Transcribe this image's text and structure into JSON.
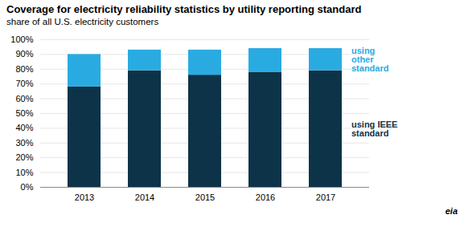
{
  "chart_data": {
    "type": "bar",
    "stacked": true,
    "title": "Coverage for electricity reliability statistics by utility reporting standard",
    "subtitle": "share of all U.S. electricity customers",
    "categories": [
      "2013",
      "2014",
      "2015",
      "2016",
      "2017"
    ],
    "series": [
      {
        "name": "using IEEE\nstandard",
        "color": "#0d3349",
        "values": [
          68,
          79,
          76,
          78,
          79
        ]
      },
      {
        "name": "using\nother\nstandard",
        "color": "#29abe2",
        "values": [
          22,
          14,
          17,
          16,
          15
        ]
      }
    ],
    "ylim": [
      0,
      100
    ],
    "yticks": [
      {
        "value": 0,
        "label": "0%"
      },
      {
        "value": 10,
        "label": "10%"
      },
      {
        "value": 20,
        "label": "20%"
      },
      {
        "value": 30,
        "label": "30%"
      },
      {
        "value": 40,
        "label": "40%"
      },
      {
        "value": 50,
        "label": "50%"
      },
      {
        "value": 60,
        "label": "60%"
      },
      {
        "value": 70,
        "label": "70%"
      },
      {
        "value": 80,
        "label": "80%"
      },
      {
        "value": 90,
        "label": "90%"
      },
      {
        "value": 100,
        "label": "100%"
      }
    ],
    "grid": true,
    "legend": "right",
    "annotations": [
      "eia"
    ]
  }
}
